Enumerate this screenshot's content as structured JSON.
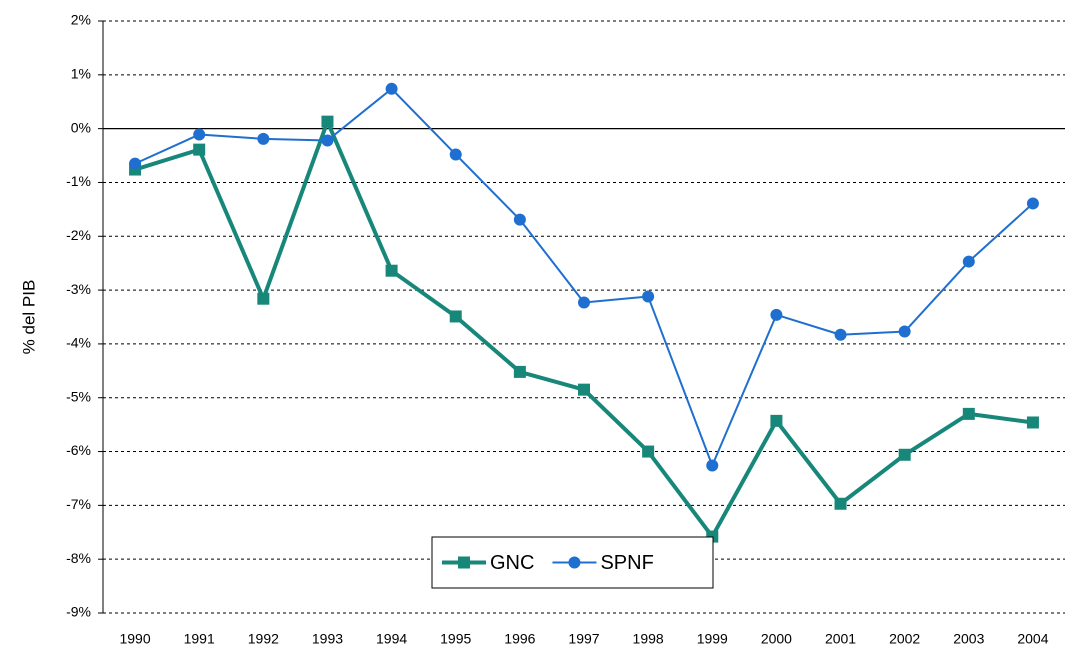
{
  "chart_data": {
    "type": "line",
    "y_label": "% del PIB",
    "categories": [
      "1990",
      "1991",
      "1992",
      "1993",
      "1994",
      "1995",
      "1996",
      "1997",
      "1998",
      "1999",
      "2000",
      "2001",
      "2002",
      "2003",
      "2004"
    ],
    "series": [
      {
        "name": "GNC",
        "color": "#17877a",
        "marker": "square",
        "values": [
          -0.76,
          -0.39,
          -3.16,
          0.13,
          -2.64,
          -3.49,
          -4.52,
          -4.85,
          -6.0,
          -7.58,
          -5.43,
          -6.97,
          -6.06,
          -5.3,
          -5.46
        ]
      },
      {
        "name": "SPNF",
        "color": "#1f6fd0",
        "marker": "circle",
        "values": [
          -0.65,
          -0.11,
          -0.19,
          -0.22,
          0.74,
          -0.48,
          -1.69,
          -3.23,
          -3.12,
          -6.26,
          -3.46,
          -3.83,
          -3.77,
          -2.47,
          -1.39
        ]
      }
    ],
    "ylim": [
      -9,
      2
    ],
    "yticks": [
      {
        "value": -9,
        "label": "-9%"
      },
      {
        "value": -8,
        "label": "-8%"
      },
      {
        "value": -7,
        "label": "-7%"
      },
      {
        "value": -6,
        "label": "-6%"
      },
      {
        "value": -5,
        "label": "-5%"
      },
      {
        "value": -4,
        "label": "-4%"
      },
      {
        "value": -3,
        "label": "-3%"
      },
      {
        "value": -2,
        "label": "-2%"
      },
      {
        "value": -1,
        "label": "-1%"
      },
      {
        "value": 0,
        "label": "0%"
      },
      {
        "value": 1,
        "label": "1%"
      },
      {
        "value": 2,
        "label": "2%"
      }
    ],
    "grid": true,
    "legend": "bottom"
  }
}
